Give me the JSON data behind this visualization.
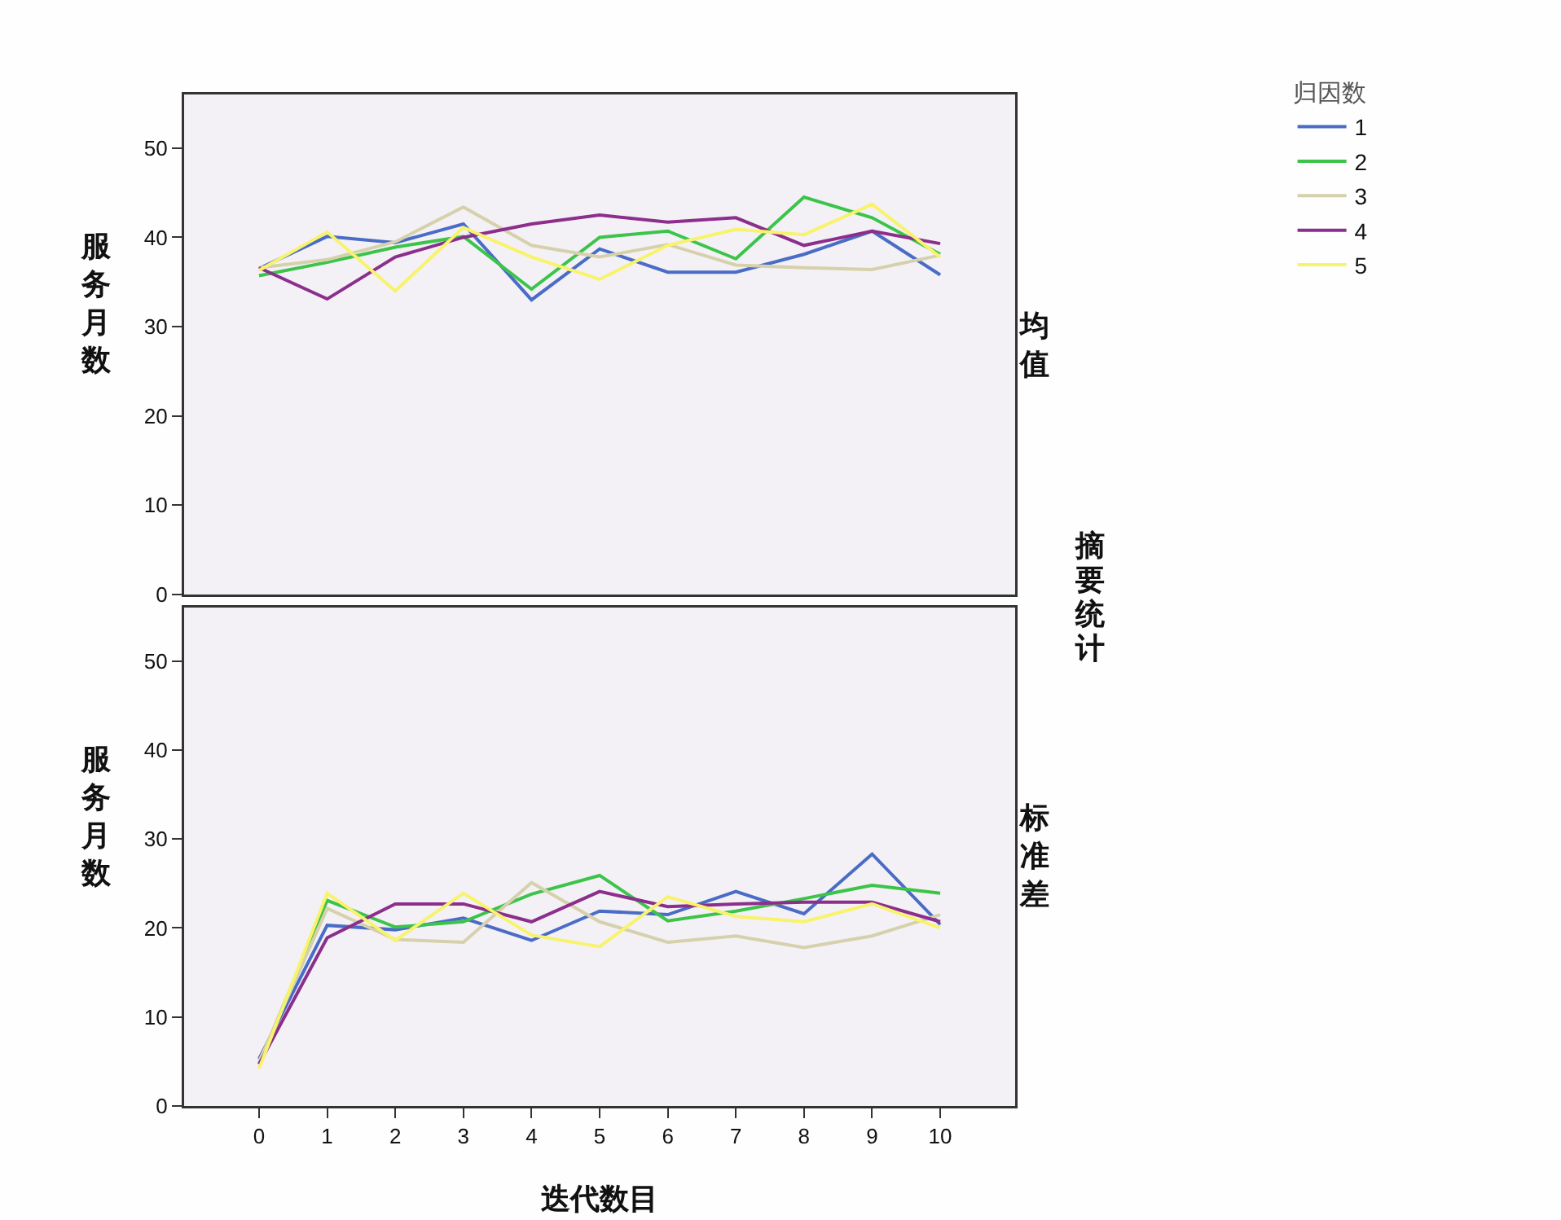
{
  "chart_data": [
    {
      "type": "line",
      "ylabel": "服务月数",
      "annotations": [
        "均值",
        "摘要统计"
      ],
      "legend_title": "归因数",
      "legend": "right",
      "tick_labels": "y",
      "x": [
        0,
        1,
        2,
        3,
        4,
        5,
        6,
        7,
        8,
        9,
        10
      ],
      "xlim": [
        -1.1,
        11.1
      ],
      "ylim": [
        0,
        56
      ],
      "yticks": [
        0,
        10,
        20,
        30,
        40,
        50
      ],
      "series": [
        {
          "name": "1",
          "color": "#4a6cc6",
          "values": [
            36.5,
            40.1,
            39.4,
            41.5,
            33.0,
            38.7,
            36.1,
            36.1,
            38.1,
            40.7,
            35.8
          ]
        },
        {
          "name": "2",
          "color": "#3cc44a",
          "values": [
            35.7,
            37.2,
            38.9,
            40.1,
            34.2,
            40.0,
            40.7,
            37.6,
            44.5,
            42.2,
            38.1
          ]
        },
        {
          "name": "3",
          "color": "#d6d1ac",
          "values": [
            36.6,
            37.5,
            39.5,
            43.4,
            39.1,
            37.8,
            39.2,
            36.9,
            36.6,
            36.4,
            38.0
          ]
        },
        {
          "name": "4",
          "color": "#8c2e8c",
          "values": [
            36.6,
            33.1,
            37.8,
            40.0,
            41.5,
            42.5,
            41.7,
            42.2,
            39.1,
            40.7,
            39.3
          ]
        },
        {
          "name": "5",
          "color": "#f8f36c",
          "values": [
            36.3,
            40.6,
            34.0,
            41.1,
            37.8,
            35.3,
            39.1,
            40.9,
            40.3,
            43.7,
            37.8
          ]
        }
      ]
    },
    {
      "type": "line",
      "ylabel": "服务月数",
      "xlabel": "迭代数目",
      "annotations": [
        "标准差"
      ],
      "x": [
        0,
        1,
        2,
        3,
        4,
        5,
        6,
        7,
        8,
        9,
        10
      ],
      "xlim": [
        -1.1,
        11.1
      ],
      "xticks": [
        0,
        1,
        2,
        3,
        4,
        5,
        6,
        7,
        8,
        9,
        10
      ],
      "ylim": [
        0,
        56
      ],
      "yticks": [
        0,
        10,
        20,
        30,
        40,
        50
      ],
      "series": [
        {
          "name": "1",
          "color": "#4a6cc6",
          "values": [
            5.3,
            20.3,
            19.8,
            21.1,
            18.6,
            21.9,
            21.5,
            24.1,
            21.6,
            28.3,
            20.4
          ]
        },
        {
          "name": "2",
          "color": "#3cc44a",
          "values": [
            4.7,
            23.1,
            20.1,
            20.7,
            23.8,
            25.9,
            20.8,
            21.9,
            23.3,
            24.8,
            23.9
          ]
        },
        {
          "name": "3",
          "color": "#d6d1ac",
          "values": [
            5.0,
            22.2,
            18.7,
            18.4,
            25.1,
            20.7,
            18.4,
            19.1,
            17.8,
            19.1,
            21.5
          ]
        },
        {
          "name": "4",
          "color": "#8c2e8c",
          "values": [
            4.7,
            18.9,
            22.7,
            22.7,
            20.7,
            24.1,
            22.4,
            22.7,
            22.9,
            22.9,
            20.7
          ]
        },
        {
          "name": "5",
          "color": "#f8f36c",
          "values": [
            4.2,
            23.9,
            18.6,
            23.9,
            19.2,
            17.9,
            23.5,
            21.3,
            20.7,
            22.7,
            20.0
          ]
        }
      ]
    }
  ]
}
